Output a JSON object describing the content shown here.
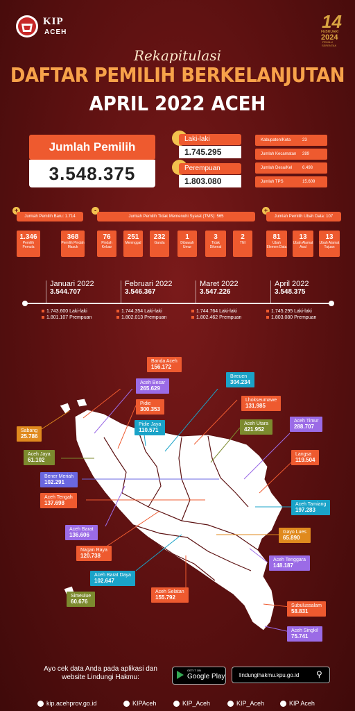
{
  "header": {
    "org_name": "KIP",
    "org_region": "ACEH",
    "pemilu_logo_text": [
      "14",
      "FEBRUARI",
      "2024",
      "PEMILU",
      "SERENTAK"
    ]
  },
  "title": {
    "script": "Rekapitulasi",
    "line1": "DAFTAR PEMILIH BERKELANJUTAN",
    "line2": "APRIL 2022 ACEH"
  },
  "total": {
    "label": "Jumlah Pemilih",
    "value": "3.548.375"
  },
  "gender": {
    "male_label": "Laki-laki",
    "male_value": "1.745.295",
    "female_label": "Perempuan",
    "female_value": "1.803.080"
  },
  "stats": [
    {
      "label": "Kabupaten/Kota",
      "value": "23"
    },
    {
      "label": "Jumlah Kecamatan",
      "value": "289"
    },
    {
      "label": "Jumlah Desa/Kel",
      "value": "6.498"
    },
    {
      "label": "Jumlah TPS",
      "value": "15.609"
    }
  ],
  "new_voters": {
    "sign": "+",
    "header": "Jumlah Pemilih Baru: 1.714",
    "items": [
      {
        "value": "1.346",
        "label": "Pemilih Pemula"
      },
      {
        "value": "368",
        "label": "Pemilih Pindah Masuk"
      }
    ]
  },
  "tms": {
    "sign": "-",
    "header": "Jumlah Pemilih Tidak Memenuhi Syarat (TMS): 565",
    "items": [
      {
        "value": "76",
        "label": "Pindah Keluar"
      },
      {
        "value": "251",
        "label": "Meninggal"
      },
      {
        "value": "232",
        "label": "Ganda"
      },
      {
        "value": "1",
        "label": "Dibawah Umur"
      },
      {
        "value": "3",
        "label": "Tidak Dikenal"
      },
      {
        "value": "2",
        "label": "TNI"
      }
    ]
  },
  "changed": {
    "sign": "+",
    "header": "Jumlah Pemilih Ubah Data: 107",
    "items": [
      {
        "value": "81",
        "label": "Ubah Elemen Data"
      },
      {
        "value": "13",
        "label": "Ubah Alamat Asal"
      },
      {
        "value": "13",
        "label": "Ubah Alamat Tujuan"
      }
    ]
  },
  "timeline": [
    {
      "month": "Januari 2022",
      "total": "3.544.707",
      "male": "1.743.600 Laki-laki",
      "female": "1.801.107 Prempuan"
    },
    {
      "month": "Februari 2022",
      "total": "3.546.367",
      "male": "1.744.354 Laki-laki",
      "female": "1.802.013 Prempuan"
    },
    {
      "month": "Maret 2022",
      "total": "3.547.226",
      "male": "1.744.764 Laki-laki",
      "female": "1.802.462 Prempuan"
    },
    {
      "month": "April 2022",
      "total": "3.548.375",
      "male": "1.745.295 Laki-laki",
      "female": "1.803.080 Prempuan"
    }
  ],
  "regions": [
    {
      "name": "Banda Aceh",
      "value": "156.172",
      "color": "#ee5a2f"
    },
    {
      "name": "Aceh Besar",
      "value": "265.629",
      "color": "#9b6be6"
    },
    {
      "name": "Pidie",
      "value": "300.353",
      "color": "#ee5a2f"
    },
    {
      "name": "Pidie Jaya",
      "value": "110.571",
      "color": "#1aa3c8"
    },
    {
      "name": "Bireuen",
      "value": "304.234",
      "color": "#1aa3c8"
    },
    {
      "name": "Lhokseumawe",
      "value": "131.985",
      "color": "#ee5a2f"
    },
    {
      "name": "Aceh Utara",
      "value": "421.952",
      "color": "#7c8a2e"
    },
    {
      "name": "Aceh Timur",
      "value": "288.707",
      "color": "#9b6be6"
    },
    {
      "name": "Langsa",
      "value": "119.504",
      "color": "#ee5a2f"
    },
    {
      "name": "Sabang",
      "value": "25.786",
      "color": "#e08a1e"
    },
    {
      "name": "Aceh Jaya",
      "value": "61.102",
      "color": "#7c8a2e"
    },
    {
      "name": "Bener Meriah",
      "value": "102.291",
      "color": "#6a67e0"
    },
    {
      "name": "Aceh Tengah",
      "value": "137.698",
      "color": "#ee5a2f"
    },
    {
      "name": "Aceh Tamiang",
      "value": "197.283",
      "color": "#1aa3c8"
    },
    {
      "name": "Aceh Barat",
      "value": "136.606",
      "color": "#9b6be6"
    },
    {
      "name": "Gayo Lues",
      "value": "65.890",
      "color": "#e08a1e"
    },
    {
      "name": "Nagan Raya",
      "value": "120.738",
      "color": "#ee5a2f"
    },
    {
      "name": "Aceh Tenggara",
      "value": "148.187",
      "color": "#9b6be6"
    },
    {
      "name": "Aceh Barat Daya",
      "value": "102.647",
      "color": "#1aa3c8"
    },
    {
      "name": "Aceh Selatan",
      "value": "155.792",
      "color": "#ee5a2f"
    },
    {
      "name": "Simeulue",
      "value": "60.676",
      "color": "#7c8a2e"
    },
    {
      "name": "Subulussalam",
      "value": "58.831",
      "color": "#ee5a2f"
    },
    {
      "name": "Aceh Singkil",
      "value": "75.741",
      "color": "#9b6be6"
    }
  ],
  "footer": {
    "cta": "Ayo cek data Anda pada aplikasi dan website Lindungi Hakmu:",
    "gplay_small": "GET IT ON",
    "gplay_big": "Google Play",
    "site": "lindungihakmu.kpu.go.id",
    "social": [
      {
        "icon": "globe-icon",
        "text": "kip.acehprov.go.id"
      },
      {
        "icon": "facebook-icon",
        "text": "KIPAceh"
      },
      {
        "icon": "instagram-icon",
        "text": "KIP_Aceh"
      },
      {
        "icon": "twitter-icon",
        "text": "KIP_Aceh"
      },
      {
        "icon": "youtube-icon",
        "text": "KIP Aceh"
      }
    ]
  }
}
